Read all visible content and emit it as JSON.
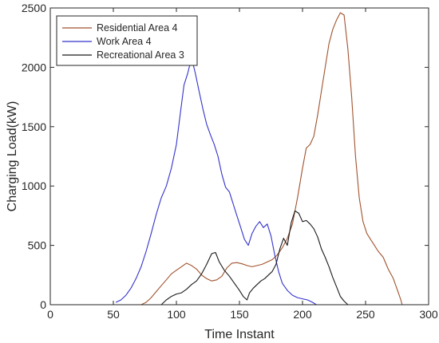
{
  "chart_data": {
    "type": "line",
    "xlabel": "Time Instant",
    "ylabel": "Charging Load(kW)",
    "xlim": [
      0,
      300
    ],
    "ylim": [
      0,
      2500
    ],
    "xticks": [
      0,
      50,
      100,
      150,
      200,
      250,
      300
    ],
    "yticks": [
      0,
      500,
      1000,
      1500,
      2000,
      2500
    ],
    "grid": false,
    "legend_position": "top-left",
    "series": [
      {
        "name": "Residential Area 4",
        "color": "#a0522d",
        "points": [
          [
            72,
            0
          ],
          [
            76,
            20
          ],
          [
            80,
            60
          ],
          [
            84,
            110
          ],
          [
            88,
            160
          ],
          [
            92,
            210
          ],
          [
            96,
            260
          ],
          [
            100,
            290
          ],
          [
            104,
            320
          ],
          [
            108,
            350
          ],
          [
            112,
            330
          ],
          [
            116,
            300
          ],
          [
            120,
            250
          ],
          [
            124,
            220
          ],
          [
            128,
            200
          ],
          [
            132,
            210
          ],
          [
            136,
            240
          ],
          [
            140,
            310
          ],
          [
            144,
            350
          ],
          [
            148,
            355
          ],
          [
            152,
            345
          ],
          [
            156,
            330
          ],
          [
            160,
            320
          ],
          [
            164,
            330
          ],
          [
            168,
            340
          ],
          [
            172,
            360
          ],
          [
            176,
            380
          ],
          [
            180,
            420
          ],
          [
            184,
            480
          ],
          [
            188,
            560
          ],
          [
            192,
            680
          ],
          [
            196,
            900
          ],
          [
            200,
            1150
          ],
          [
            203,
            1320
          ],
          [
            206,
            1350
          ],
          [
            209,
            1420
          ],
          [
            212,
            1600
          ],
          [
            215,
            1800
          ],
          [
            218,
            2000
          ],
          [
            221,
            2200
          ],
          [
            224,
            2320
          ],
          [
            227,
            2400
          ],
          [
            230,
            2460
          ],
          [
            233,
            2440
          ],
          [
            236,
            2150
          ],
          [
            239,
            1750
          ],
          [
            242,
            1250
          ],
          [
            245,
            900
          ],
          [
            248,
            700
          ],
          [
            251,
            600
          ],
          [
            254,
            550
          ],
          [
            257,
            500
          ],
          [
            260,
            450
          ],
          [
            264,
            400
          ],
          [
            268,
            300
          ],
          [
            272,
            220
          ],
          [
            276,
            100
          ],
          [
            278,
            40
          ],
          [
            279,
            0
          ]
        ]
      },
      {
        "name": "Work Area 4",
        "color": "#3333cc",
        "points": [
          [
            52,
            20
          ],
          [
            56,
            40
          ],
          [
            60,
            80
          ],
          [
            64,
            140
          ],
          [
            68,
            220
          ],
          [
            72,
            320
          ],
          [
            76,
            450
          ],
          [
            80,
            600
          ],
          [
            84,
            760
          ],
          [
            88,
            900
          ],
          [
            92,
            1000
          ],
          [
            96,
            1150
          ],
          [
            100,
            1350
          ],
          [
            103,
            1600
          ],
          [
            106,
            1850
          ],
          [
            109,
            1950
          ],
          [
            112,
            2080
          ],
          [
            115,
            1950
          ],
          [
            118,
            1800
          ],
          [
            121,
            1650
          ],
          [
            124,
            1520
          ],
          [
            127,
            1430
          ],
          [
            130,
            1350
          ],
          [
            133,
            1250
          ],
          [
            136,
            1100
          ],
          [
            139,
            990
          ],
          [
            142,
            950
          ],
          [
            145,
            850
          ],
          [
            148,
            750
          ],
          [
            151,
            650
          ],
          [
            154,
            550
          ],
          [
            157,
            500
          ],
          [
            160,
            600
          ],
          [
            163,
            660
          ],
          [
            166,
            700
          ],
          [
            169,
            650
          ],
          [
            172,
            680
          ],
          [
            175,
            580
          ],
          [
            178,
            420
          ],
          [
            181,
            280
          ],
          [
            184,
            180
          ],
          [
            188,
            120
          ],
          [
            192,
            80
          ],
          [
            196,
            60
          ],
          [
            200,
            50
          ],
          [
            204,
            40
          ],
          [
            208,
            20
          ],
          [
            211,
            0
          ]
        ]
      },
      {
        "name": "Recreational Area 3",
        "color": "#1a1a1a",
        "points": [
          [
            88,
            0
          ],
          [
            92,
            40
          ],
          [
            96,
            70
          ],
          [
            100,
            90
          ],
          [
            104,
            100
          ],
          [
            108,
            130
          ],
          [
            112,
            170
          ],
          [
            116,
            200
          ],
          [
            120,
            260
          ],
          [
            124,
            340
          ],
          [
            128,
            430
          ],
          [
            131,
            440
          ],
          [
            134,
            360
          ],
          [
            138,
            290
          ],
          [
            142,
            240
          ],
          [
            146,
            180
          ],
          [
            150,
            120
          ],
          [
            153,
            70
          ],
          [
            156,
            40
          ],
          [
            158,
            100
          ],
          [
            161,
            140
          ],
          [
            164,
            170
          ],
          [
            167,
            200
          ],
          [
            170,
            220
          ],
          [
            173,
            250
          ],
          [
            176,
            280
          ],
          [
            179,
            340
          ],
          [
            182,
            470
          ],
          [
            185,
            560
          ],
          [
            188,
            500
          ],
          [
            191,
            690
          ],
          [
            194,
            790
          ],
          [
            197,
            770
          ],
          [
            200,
            700
          ],
          [
            203,
            710
          ],
          [
            206,
            680
          ],
          [
            209,
            640
          ],
          [
            212,
            570
          ],
          [
            215,
            470
          ],
          [
            218,
            400
          ],
          [
            221,
            320
          ],
          [
            224,
            230
          ],
          [
            227,
            150
          ],
          [
            230,
            70
          ],
          [
            233,
            30
          ],
          [
            236,
            0
          ]
        ]
      }
    ]
  }
}
